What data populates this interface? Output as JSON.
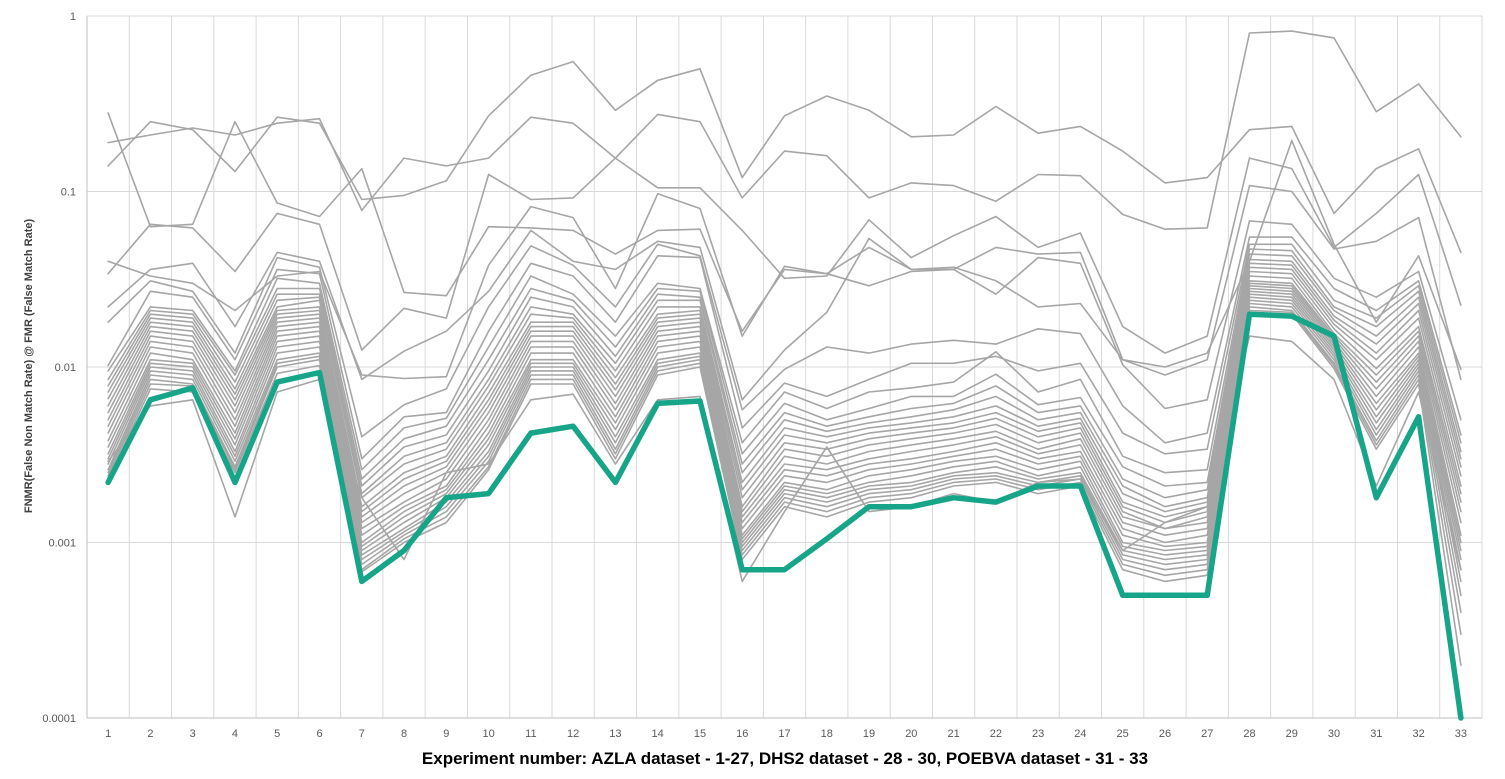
{
  "chart_data": {
    "type": "line",
    "title": "",
    "xlabel": "Experiment number: AZLA dataset - 1-27, DHS2 dataset - 28 - 30, POEBVA dataset - 31 - 33",
    "ylabel": "FNMR(False Non Match Rate) @ FMR (False Match Rate)",
    "yscale": "log",
    "ylim": [
      0.0001,
      1
    ],
    "yticks": [
      "1",
      "0.1",
      "0.01",
      "0.001",
      "0.0001"
    ],
    "x": [
      1,
      2,
      3,
      4,
      5,
      6,
      7,
      8,
      9,
      10,
      11,
      12,
      13,
      14,
      15,
      16,
      17,
      18,
      19,
      20,
      21,
      22,
      23,
      24,
      25,
      26,
      27,
      28,
      29,
      30,
      31,
      32,
      33
    ],
    "grid": true,
    "legend": "none",
    "colors": {
      "background_series": "#a6a6a6",
      "highlight": "#17a589",
      "grid": "#d9d9d9",
      "axis": "#bfbfbf"
    },
    "series": [
      {
        "values": [
          0.28,
          0.063,
          0.065,
          0.25,
          0.086,
          0.072,
          0.135,
          0.0266,
          0.0255,
          0.063,
          0.062,
          0.06,
          0.044,
          0.06,
          0.061,
          0.016,
          0.036,
          0.034,
          0.048,
          0.036,
          0.037,
          0.031,
          0.022,
          0.023,
          0.011,
          0.01,
          0.012,
          0.04,
          0.195,
          0.05,
          0.018,
          0.043,
          0.0097
        ]
      },
      {
        "values": [
          0.19,
          0.21,
          0.23,
          0.21,
          0.245,
          0.26,
          0.078,
          0.155,
          0.14,
          0.155,
          0.265,
          0.245,
          0.155,
          0.275,
          0.25,
          0.092,
          0.17,
          0.16,
          0.092,
          0.112,
          0.108,
          0.088,
          0.125,
          0.123,
          0.074,
          0.061,
          0.062,
          0.8,
          0.82,
          0.75,
          0.285,
          0.41,
          0.205
        ]
      },
      {
        "values": [
          0.14,
          0.25,
          0.225,
          0.13,
          0.265,
          0.245,
          0.09,
          0.095,
          0.115,
          0.27,
          0.46,
          0.55,
          0.29,
          0.43,
          0.5,
          0.12,
          0.27,
          0.35,
          0.29,
          0.205,
          0.21,
          0.305,
          0.215,
          0.235,
          0.17,
          0.112,
          0.12,
          0.225,
          0.235,
          0.075,
          0.135,
          0.175,
          0.045
        ]
      },
      {
        "values": [
          0.034,
          0.065,
          0.062,
          0.035,
          0.075,
          0.065,
          0.0125,
          0.0216,
          0.019,
          0.125,
          0.09,
          0.092,
          0.155,
          0.105,
          0.105,
          0.06,
          0.032,
          0.033,
          0.069,
          0.042,
          0.056,
          0.072,
          0.048,
          0.058,
          0.017,
          0.012,
          0.015,
          0.155,
          0.135,
          0.048,
          0.075,
          0.125,
          0.0225
        ]
      },
      {
        "values": [
          0.04,
          0.033,
          0.03,
          0.021,
          0.033,
          0.035,
          0.009,
          0.0086,
          0.0088,
          0.038,
          0.082,
          0.071,
          0.028,
          0.097,
          0.08,
          0.015,
          0.0375,
          0.034,
          0.029,
          0.035,
          0.036,
          0.048,
          0.044,
          0.045,
          0.011,
          0.009,
          0.011,
          0.108,
          0.1,
          0.047,
          0.052,
          0.071,
          0.0085
        ]
      },
      {
        "values": [
          0.022,
          0.036,
          0.039,
          0.017,
          0.045,
          0.04,
          0.0085,
          0.0123,
          0.016,
          0.027,
          0.06,
          0.04,
          0.036,
          0.052,
          0.048,
          0.0065,
          0.0125,
          0.0205,
          0.054,
          0.036,
          0.036,
          0.026,
          0.042,
          0.039,
          0.0103,
          0.0058,
          0.0065,
          0.068,
          0.065,
          0.032,
          0.025,
          0.035,
          0.005
        ]
      },
      {
        "values": [
          0.018,
          0.031,
          0.027,
          0.012,
          0.042,
          0.037,
          0.004,
          0.0061,
          0.0075,
          0.022,
          0.049,
          0.038,
          0.022,
          0.05,
          0.043,
          0.0057,
          0.0097,
          0.013,
          0.012,
          0.0135,
          0.0142,
          0.0135,
          0.0165,
          0.0155,
          0.006,
          0.0037,
          0.0042,
          0.055,
          0.055,
          0.028,
          0.021,
          0.031,
          0.0041
        ]
      },
      {
        "values": [
          0.0102,
          0.027,
          0.025,
          0.011,
          0.036,
          0.034,
          0.003,
          0.0052,
          0.0055,
          0.016,
          0.039,
          0.033,
          0.018,
          0.043,
          0.042,
          0.0045,
          0.0081,
          0.0068,
          0.0085,
          0.0105,
          0.0105,
          0.0115,
          0.0095,
          0.0105,
          0.0042,
          0.0032,
          0.0034,
          0.05,
          0.05,
          0.024,
          0.019,
          0.029,
          0.0037
        ]
      },
      {
        "values": [
          0.0095,
          0.022,
          0.021,
          0.0095,
          0.032,
          0.03,
          0.0026,
          0.0045,
          0.0051,
          0.013,
          0.033,
          0.026,
          0.015,
          0.03,
          0.028,
          0.0037,
          0.0072,
          0.0058,
          0.0072,
          0.0076,
          0.0082,
          0.0122,
          0.0072,
          0.0085,
          0.0031,
          0.0025,
          0.0026,
          0.047,
          0.046,
          0.022,
          0.017,
          0.027,
          0.0033
        ]
      },
      {
        "values": [
          0.0085,
          0.021,
          0.02,
          0.009,
          0.028,
          0.028,
          0.0023,
          0.0039,
          0.0046,
          0.011,
          0.028,
          0.024,
          0.013,
          0.028,
          0.027,
          0.0032,
          0.0062,
          0.005,
          0.0058,
          0.0068,
          0.0068,
          0.0091,
          0.0061,
          0.0067,
          0.0027,
          0.0021,
          0.0022,
          0.044,
          0.043,
          0.021,
          0.015,
          0.025,
          0.003
        ]
      },
      {
        "values": [
          0.0078,
          0.02,
          0.019,
          0.0082,
          0.026,
          0.026,
          0.0021,
          0.0035,
          0.0041,
          0.0095,
          0.025,
          0.022,
          0.0115,
          0.026,
          0.025,
          0.0028,
          0.0055,
          0.0046,
          0.0052,
          0.0058,
          0.0062,
          0.0078,
          0.0055,
          0.006,
          0.0023,
          0.0018,
          0.002,
          0.041,
          0.04,
          0.0195,
          0.0135,
          0.023,
          0.0027
        ]
      },
      {
        "values": [
          0.0072,
          0.019,
          0.018,
          0.0075,
          0.024,
          0.025,
          0.0019,
          0.0031,
          0.0037,
          0.0085,
          0.022,
          0.02,
          0.0105,
          0.024,
          0.024,
          0.0025,
          0.005,
          0.0043,
          0.0048,
          0.0052,
          0.0057,
          0.0068,
          0.005,
          0.0055,
          0.0021,
          0.0016,
          0.0018,
          0.039,
          0.038,
          0.0185,
          0.012,
          0.021,
          0.0024
        ]
      },
      {
        "values": [
          0.0066,
          0.018,
          0.017,
          0.007,
          0.022,
          0.024,
          0.0018,
          0.0028,
          0.0034,
          0.0078,
          0.02,
          0.019,
          0.0095,
          0.022,
          0.022,
          0.0022,
          0.0045,
          0.004,
          0.0045,
          0.0048,
          0.0052,
          0.006,
          0.0046,
          0.0051,
          0.0019,
          0.0015,
          0.0017,
          0.037,
          0.036,
          0.0175,
          0.011,
          0.019,
          0.0021
        ]
      },
      {
        "values": [
          0.006,
          0.017,
          0.016,
          0.0065,
          0.021,
          0.022,
          0.0016,
          0.0025,
          0.0031,
          0.0071,
          0.018,
          0.018,
          0.0087,
          0.02,
          0.021,
          0.002,
          0.0041,
          0.0037,
          0.0042,
          0.0045,
          0.0048,
          0.0055,
          0.0043,
          0.0048,
          0.0017,
          0.0014,
          0.0016,
          0.035,
          0.034,
          0.0165,
          0.0098,
          0.017,
          0.0019
        ]
      },
      {
        "values": [
          0.0055,
          0.016,
          0.015,
          0.006,
          0.02,
          0.021,
          0.0015,
          0.0023,
          0.0029,
          0.0065,
          0.017,
          0.017,
          0.008,
          0.019,
          0.02,
          0.0018,
          0.0037,
          0.0034,
          0.0039,
          0.0042,
          0.0045,
          0.0051,
          0.004,
          0.0045,
          0.0016,
          0.0013,
          0.0015,
          0.033,
          0.032,
          0.0155,
          0.009,
          0.016,
          0.0017
        ]
      },
      {
        "values": [
          0.005,
          0.015,
          0.014,
          0.0055,
          0.019,
          0.02,
          0.0014,
          0.0021,
          0.0027,
          0.006,
          0.016,
          0.016,
          0.0074,
          0.018,
          0.019,
          0.0016,
          0.0034,
          0.0031,
          0.0036,
          0.0039,
          0.0042,
          0.0047,
          0.0037,
          0.0042,
          0.0015,
          0.0012,
          0.0014,
          0.031,
          0.03,
          0.015,
          0.0082,
          0.015,
          0.0015
        ]
      },
      {
        "values": [
          0.0046,
          0.014,
          0.013,
          0.005,
          0.018,
          0.019,
          0.0013,
          0.0019,
          0.0025,
          0.0055,
          0.015,
          0.015,
          0.0068,
          0.017,
          0.018,
          0.0015,
          0.0031,
          0.0028,
          0.0033,
          0.0036,
          0.0039,
          0.0043,
          0.0034,
          0.0039,
          0.0014,
          0.0012,
          0.0013,
          0.03,
          0.029,
          0.0145,
          0.0075,
          0.014,
          0.0013
        ]
      },
      {
        "values": [
          0.0042,
          0.013,
          0.012,
          0.0046,
          0.017,
          0.018,
          0.0012,
          0.0017,
          0.0023,
          0.005,
          0.014,
          0.014,
          0.0062,
          0.016,
          0.017,
          0.0014,
          0.0028,
          0.0026,
          0.003,
          0.0033,
          0.0036,
          0.004,
          0.0032,
          0.0036,
          0.0013,
          0.0011,
          0.0012,
          0.029,
          0.028,
          0.014,
          0.0068,
          0.013,
          0.0011
        ]
      },
      {
        "values": [
          0.0038,
          0.012,
          0.011,
          0.0042,
          0.016,
          0.017,
          0.0011,
          0.0016,
          0.0021,
          0.0046,
          0.013,
          0.013,
          0.0057,
          0.015,
          0.016,
          0.0013,
          0.0026,
          0.0024,
          0.0028,
          0.003,
          0.0033,
          0.0037,
          0.003,
          0.0033,
          0.0012,
          0.001,
          0.0011,
          0.028,
          0.027,
          0.0135,
          0.0062,
          0.012,
          0.001
        ]
      },
      {
        "values": [
          0.0035,
          0.011,
          0.0105,
          0.0039,
          0.015,
          0.016,
          0.001,
          0.0015,
          0.002,
          0.0042,
          0.012,
          0.012,
          0.0052,
          0.014,
          0.015,
          0.0012,
          0.0024,
          0.0022,
          0.0026,
          0.0028,
          0.0031,
          0.0034,
          0.0028,
          0.0031,
          0.0011,
          0.00095,
          0.001,
          0.027,
          0.026,
          0.013,
          0.0057,
          0.0115,
          0.0009
        ]
      },
      {
        "values": [
          0.0032,
          0.0105,
          0.01,
          0.0036,
          0.014,
          0.015,
          0.00095,
          0.0014,
          0.0019,
          0.0039,
          0.011,
          0.011,
          0.0048,
          0.013,
          0.014,
          0.0011,
          0.0022,
          0.002,
          0.0024,
          0.0026,
          0.0029,
          0.0031,
          0.0026,
          0.0029,
          0.001,
          0.0009,
          0.00095,
          0.026,
          0.025,
          0.0125,
          0.0052,
          0.011,
          0.0008
        ]
      },
      {
        "values": [
          0.003,
          0.01,
          0.0095,
          0.0033,
          0.013,
          0.014,
          0.0009,
          0.0013,
          0.0018,
          0.0036,
          0.0105,
          0.0105,
          0.0044,
          0.012,
          0.013,
          0.00105,
          0.0021,
          0.0019,
          0.0022,
          0.0024,
          0.0027,
          0.0029,
          0.0024,
          0.0027,
          0.00095,
          0.00085,
          0.0009,
          0.025,
          0.024,
          0.012,
          0.0048,
          0.0105,
          0.0007
        ]
      },
      {
        "values": [
          0.0028,
          0.0095,
          0.009,
          0.0031,
          0.012,
          0.013,
          0.00085,
          0.0012,
          0.0017,
          0.0033,
          0.01,
          0.01,
          0.004,
          0.011,
          0.012,
          0.001,
          0.002,
          0.0018,
          0.0021,
          0.0022,
          0.0025,
          0.0027,
          0.0023,
          0.0025,
          0.0009,
          0.0008,
          0.00085,
          0.024,
          0.023,
          0.0115,
          0.0044,
          0.01,
          0.0006
        ]
      },
      {
        "values": [
          0.0026,
          0.009,
          0.0085,
          0.0029,
          0.011,
          0.012,
          0.0008,
          0.00115,
          0.0016,
          0.0031,
          0.0095,
          0.0095,
          0.0037,
          0.0105,
          0.0115,
          0.00095,
          0.0019,
          0.0017,
          0.002,
          0.0021,
          0.0024,
          0.0025,
          0.0022,
          0.0024,
          0.00085,
          0.00075,
          0.0008,
          0.023,
          0.022,
          0.011,
          0.0041,
          0.0095,
          0.0005
        ]
      },
      {
        "values": [
          0.0025,
          0.0085,
          0.008,
          0.0027,
          0.0105,
          0.0115,
          0.00075,
          0.0011,
          0.0015,
          0.0029,
          0.009,
          0.009,
          0.0034,
          0.01,
          0.011,
          0.0009,
          0.0018,
          0.0016,
          0.0019,
          0.002,
          0.0023,
          0.0024,
          0.0021,
          0.0023,
          0.0008,
          0.0007,
          0.00075,
          0.022,
          0.021,
          0.0105,
          0.0038,
          0.009,
          0.0004
        ]
      },
      {
        "values": [
          0.0024,
          0.008,
          0.0078,
          0.0026,
          0.01,
          0.011,
          0.0007,
          0.00105,
          0.0014,
          0.0027,
          0.0085,
          0.0085,
          0.0032,
          0.0095,
          0.0105,
          0.00085,
          0.0017,
          0.0015,
          0.0018,
          0.0019,
          0.0022,
          0.0023,
          0.002,
          0.0022,
          0.00075,
          0.00065,
          0.0007,
          0.021,
          0.0205,
          0.0102,
          0.0036,
          0.0085,
          0.0003
        ]
      },
      {
        "values": [
          0.0023,
          0.0075,
          0.0072,
          0.0025,
          0.0092,
          0.0102,
          0.00068,
          0.001,
          0.0013,
          0.0026,
          0.008,
          0.008,
          0.003,
          0.009,
          0.01,
          0.0008,
          0.0016,
          0.0014,
          0.0017,
          0.0018,
          0.0021,
          0.0022,
          0.0019,
          0.0021,
          0.0007,
          0.0006,
          0.00065,
          0.02,
          0.02,
          0.0098,
          0.0034,
          0.008,
          0.0002
        ]
      },
      {
        "values": [
          0.0029,
          0.006,
          0.0065,
          0.0014,
          0.0072,
          0.0085,
          0.0018,
          0.0008,
          0.0025,
          0.0028,
          0.0065,
          0.007,
          0.0028,
          0.0065,
          0.0068,
          0.0006,
          0.0015,
          0.0035,
          0.0015,
          0.0016,
          0.0019,
          0.0017,
          0.0022,
          0.0023,
          0.0009,
          0.0013,
          0.0016,
          0.015,
          0.014,
          0.0085,
          0.0021,
          0.0072,
          0.0007
        ]
      },
      {
        "values": [
          0.0022,
          0.0065,
          0.0076,
          0.0022,
          0.0082,
          0.0093,
          0.0006,
          0.0009,
          0.0018,
          0.0019,
          0.0042,
          0.0046,
          0.0022,
          0.0062,
          0.0064,
          0.0007,
          0.0007,
          0.00105,
          0.0016,
          0.0016,
          0.0018,
          0.0017,
          0.0021,
          0.0021,
          0.0005,
          0.0005,
          0.0005,
          0.02,
          0.0195,
          0.015,
          0.0018,
          0.0052,
          0.0001
        ],
        "highlight": true
      }
    ]
  }
}
